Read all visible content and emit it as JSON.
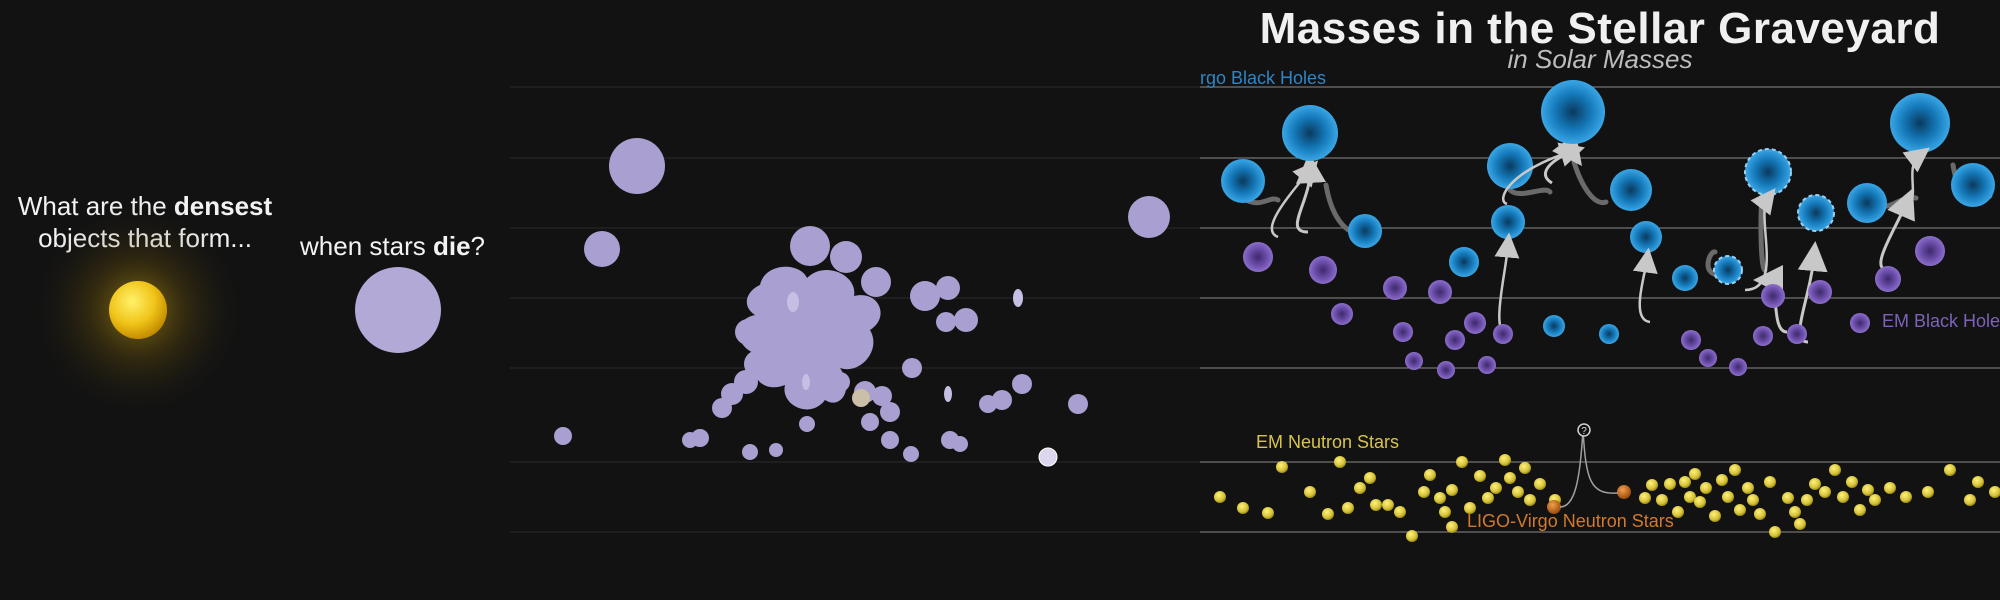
{
  "intro": {
    "question_part1": "What are the",
    "question_emph1": "densest",
    "question_part2": "objects that form...",
    "question2_part1": "when stars",
    "question2_emph": "die",
    "question2_end": "?"
  },
  "graveyard": {
    "title": "Masses in the Stellar Graveyard",
    "subtitle": "in Solar Masses",
    "legend": {
      "ligo_bh": "rgo Black Holes",
      "em_bh": "EM Black Holes",
      "em_ns": "EM Neutron Stars",
      "ligo_ns": "LIGO-Virgo Neutron Stars"
    },
    "question_marker": "?"
  },
  "colors": {
    "background": "#121212",
    "sun": "#f0c419",
    "lavender": "#a99fd0",
    "ligo_bh": "#1e88c8",
    "em_bh": "#7b5bb8",
    "em_ns": "#d6c23a",
    "ligo_ns": "#d06f1e",
    "gridline": "#7a7a7a"
  }
}
